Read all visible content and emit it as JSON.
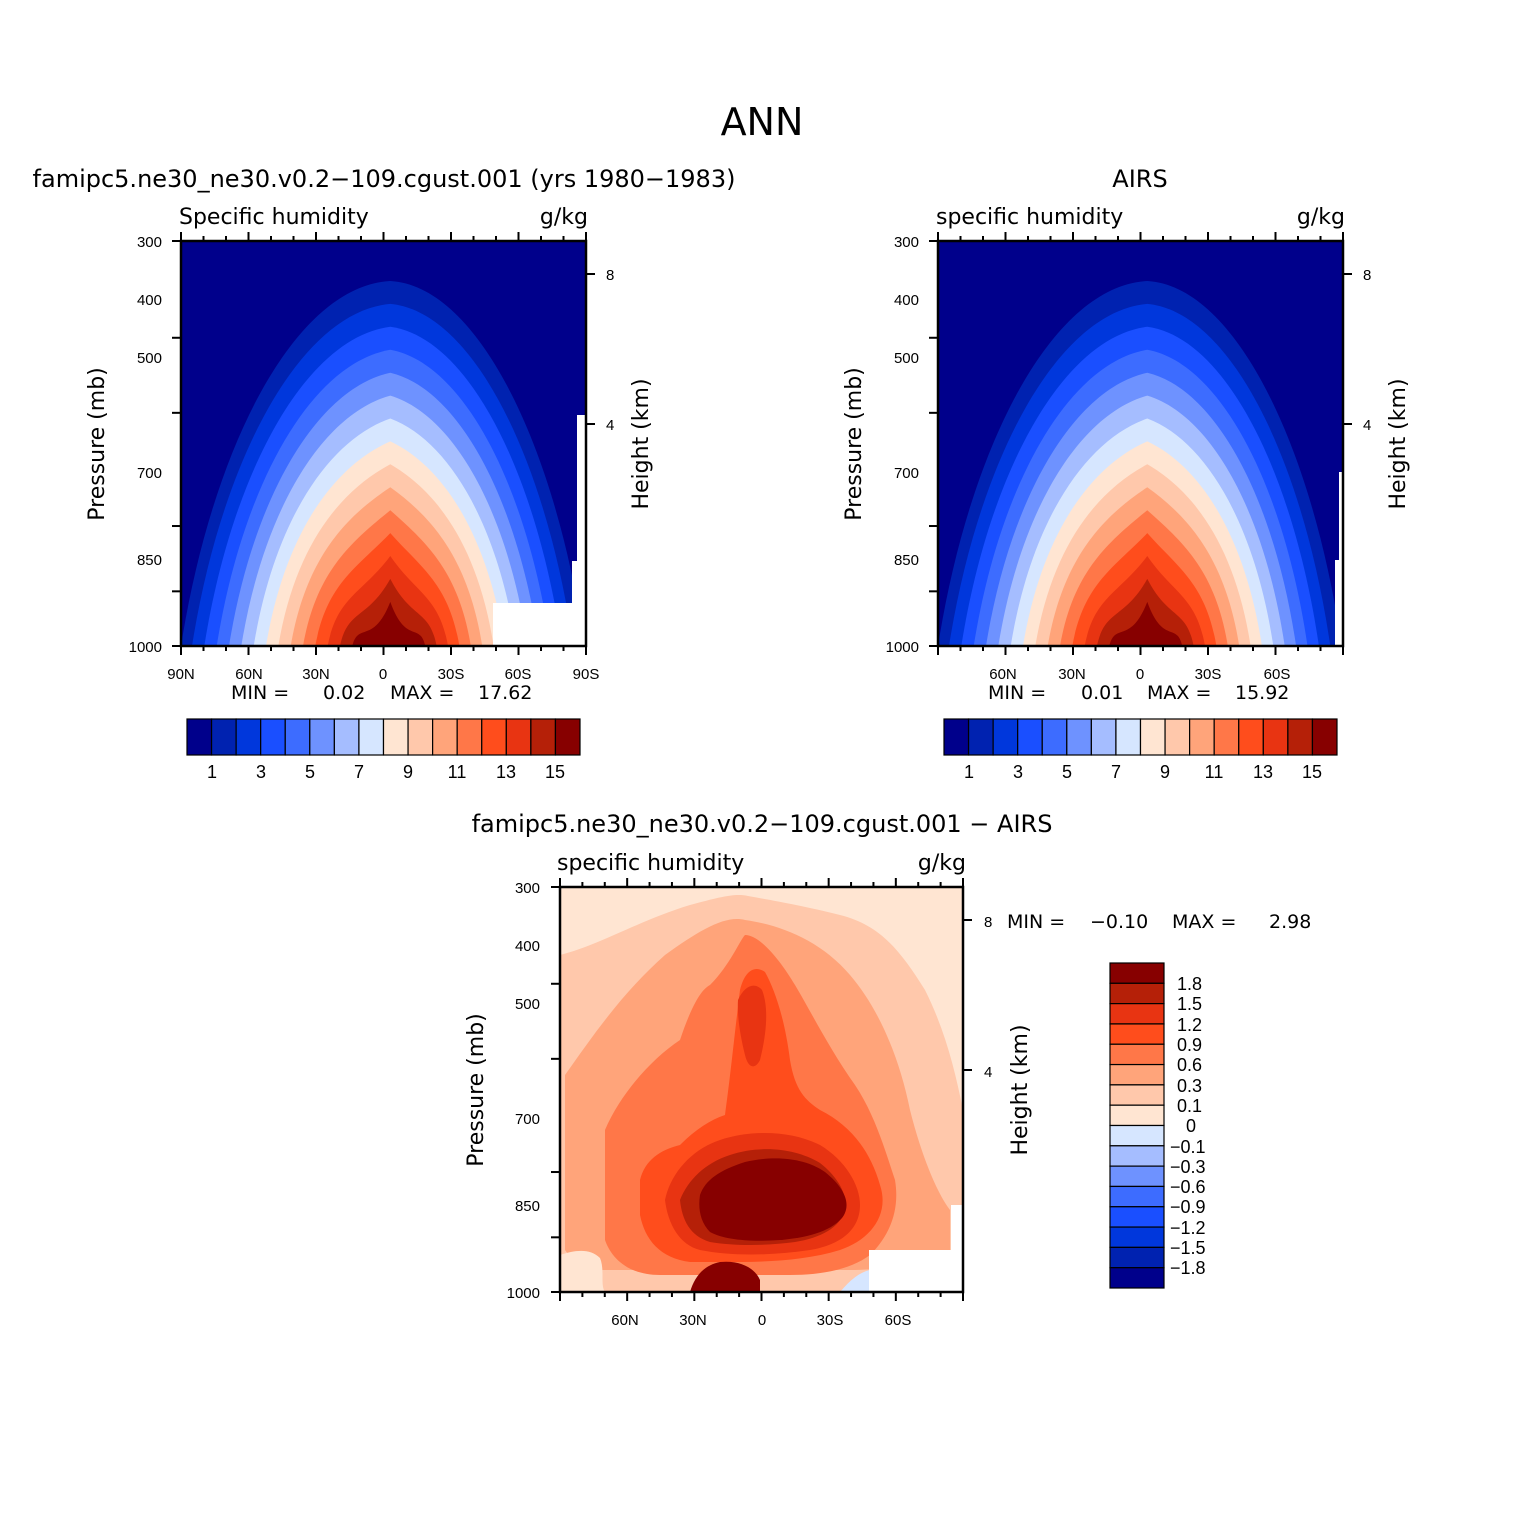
{
  "figure_title": "ANN",
  "chart_data": [
    {
      "type": "heatmap",
      "id": "model",
      "title": "famipc5.ne30_ne30.v0.2−109.cgust.001 (yrs 1980−1983)",
      "left_label": "Specific humidity",
      "right_label": "g/kg",
      "xlabel": "",
      "ylabel": "Pressure (mb)",
      "y2label": "Height (km)",
      "x_ticks": [
        "90N",
        "60N",
        "30N",
        "0",
        "30S",
        "60S",
        "90S"
      ],
      "y_ticks": [
        "300",
        "400",
        "500",
        "700",
        "850",
        "1000"
      ],
      "y2_ticks": [
        "8",
        "4"
      ],
      "stats": {
        "min_label": "MIN =",
        "min": "0.02",
        "max_label": "MAX =",
        "max": "17.62"
      },
      "peak_lat": -3,
      "min": 0.02,
      "max": 17.62,
      "colorbar_labels": [
        "1",
        "3",
        "5",
        "7",
        "9",
        "11",
        "13",
        "15"
      ],
      "colorbar_orientation": "horizontal",
      "colors": [
        "#00008b",
        "#0022b0",
        "#0037dc",
        "#1a4fff",
        "#3d6cff",
        "#6e92ff",
        "#a5bdff",
        "#d6e6ff",
        "#ffe5d2",
        "#ffc8ab",
        "#ffa47a",
        "#ff7748",
        "#ff4d1c",
        "#e83412",
        "#b52008",
        "#870000"
      ]
    },
    {
      "type": "heatmap",
      "id": "obs",
      "title": "AIRS",
      "left_label": "specific humidity",
      "right_label": "g/kg",
      "xlabel": "",
      "ylabel": "Pressure (mb)",
      "y2label": "Height (km)",
      "x_ticks": [
        "60N",
        "30N",
        "0",
        "30S",
        "60S"
      ],
      "y_ticks": [
        "300",
        "400",
        "500",
        "700",
        "850",
        "1000"
      ],
      "y2_ticks": [
        "8",
        "4"
      ],
      "stats": {
        "min_label": "MIN =",
        "min": "0.01",
        "max_label": "MAX =",
        "max": "15.92"
      },
      "peak_lat": -3,
      "min": 0.01,
      "max": 15.92,
      "colorbar_labels": [
        "1",
        "3",
        "5",
        "7",
        "9",
        "11",
        "13",
        "15"
      ],
      "colorbar_orientation": "horizontal",
      "colors": [
        "#00008b",
        "#0022b0",
        "#0037dc",
        "#1a4fff",
        "#3d6cff",
        "#6e92ff",
        "#a5bdff",
        "#d6e6ff",
        "#ffe5d2",
        "#ffc8ab",
        "#ffa47a",
        "#ff7748",
        "#ff4d1c",
        "#e83412",
        "#b52008",
        "#870000"
      ]
    },
    {
      "type": "heatmap",
      "id": "diff",
      "title": "famipc5.ne30_ne30.v0.2−109.cgust.001 − AIRS",
      "left_label": "specific humidity",
      "right_label": "g/kg",
      "xlabel": "",
      "ylabel": "Pressure (mb)",
      "y2label": "Height (km)",
      "x_ticks": [
        "60N",
        "30N",
        "0",
        "30S",
        "60S"
      ],
      "y_ticks": [
        "300",
        "400",
        "500",
        "700",
        "850",
        "1000"
      ],
      "y2_ticks": [
        "8",
        "4"
      ],
      "stats": {
        "min_label": "MIN =",
        "min": "−0.10",
        "max_label": "MAX =",
        "max": "2.98"
      },
      "min": -0.1,
      "max": 2.98,
      "colorbar_labels": [
        "1.8",
        "1.5",
        "1.2",
        "0.9",
        "0.6",
        "0.3",
        "0.1",
        "0",
        "−0.1",
        "−0.3",
        "−0.6",
        "−0.9",
        "−1.2",
        "−1.5",
        "−1.8"
      ],
      "colorbar_orientation": "vertical",
      "colors": [
        "#870000",
        "#b52008",
        "#e83412",
        "#ff4d1c",
        "#ff7748",
        "#ffa47a",
        "#ffc8ab",
        "#ffe5d2",
        "#d6e6ff",
        "#a5bdff",
        "#6e92ff",
        "#3d6cff",
        "#1a4fff",
        "#0037dc",
        "#0022b0",
        "#00008b"
      ]
    }
  ]
}
